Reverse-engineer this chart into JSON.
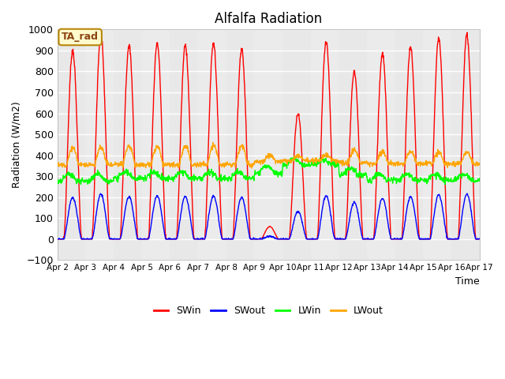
{
  "title": "Alfalfa Radiation",
  "xlabel": "Time",
  "ylabel": "Radiation (W/m2)",
  "ylim": [
    -100,
    1000
  ],
  "series_names": [
    "SWin",
    "SWout",
    "LWin",
    "LWout"
  ],
  "series_colors": [
    "red",
    "blue",
    "lime",
    "orange"
  ],
  "xtick_labels": [
    "Apr 2",
    "Apr 3",
    "Apr 4",
    "Apr 5",
    "Apr 6",
    "Apr 7",
    "Apr 8",
    "Apr 9",
    "Apr 10",
    "Apr 11",
    "Apr 12",
    "Apr 13",
    "Apr 14",
    "Apr 15",
    "Apr 16",
    "Apr 17"
  ],
  "legend_label": "TA_rad",
  "plot_bg": "#e8e8e8",
  "band_light": "#ebebeb",
  "band_dark": "#d8d8d8",
  "grid_color": "#f5f5f5",
  "SWin_peaks": [
    900,
    975,
    925,
    935,
    925,
    935,
    905,
    60,
    600,
    940,
    800,
    885,
    915,
    960,
    975
  ],
  "n_days": 15,
  "steps_per_day": 96
}
